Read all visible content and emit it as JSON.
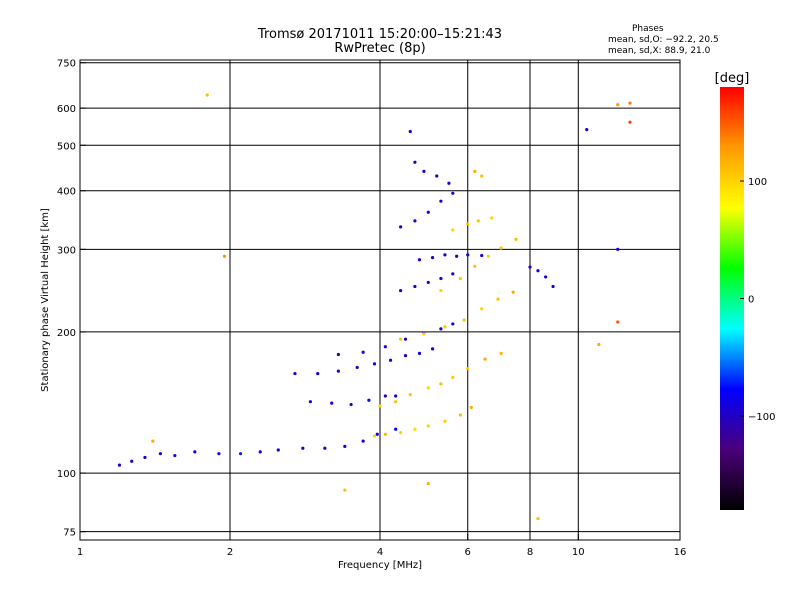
{
  "chart_data": {
    "type": "scatter",
    "title": "Tromsø 20171011 15:20:00–15:21:43",
    "subtitle": "RwPretec (8p)",
    "xlabel": "Frequency [MHz]",
    "ylabel": "Stationary phase Virtual Height [km]",
    "x_scale": "log",
    "y_scale": "log",
    "xlim": [
      1,
      16
    ],
    "ylim": [
      72,
      760
    ],
    "x_ticks": [
      1,
      2,
      4,
      6,
      8,
      10,
      16
    ],
    "y_ticks": [
      75,
      100,
      200,
      300,
      400,
      500,
      600,
      750
    ],
    "grid": true,
    "phases_header": "Phases",
    "phases_o": "mean, sd,O: −92.2, 20.5",
    "phases_x": "mean, sd,X:  88.9, 21.0",
    "colorbar": {
      "label": "[deg]",
      "ticks": [
        "100",
        "0",
        "−100"
      ],
      "tick_values": [
        100,
        0,
        -100
      ],
      "range": [
        -180,
        180
      ],
      "palette": [
        "#000000",
        "#4b007a",
        "#0000ff",
        "#00ffff",
        "#00ff00",
        "#ffff00",
        "#ff9900",
        "#ff0000"
      ]
    },
    "series": [
      {
        "points": [
          [
            1.2,
            104,
            -95
          ],
          [
            1.27,
            106,
            -100
          ],
          [
            1.35,
            108,
            -90
          ],
          [
            1.45,
            110,
            -95
          ],
          [
            1.55,
            109,
            -100
          ],
          [
            1.7,
            111,
            -90
          ],
          [
            1.9,
            110,
            -80
          ],
          [
            2.1,
            110,
            -70
          ],
          [
            2.3,
            111,
            -95
          ],
          [
            2.5,
            112,
            -90
          ],
          [
            2.8,
            113,
            -95
          ],
          [
            3.1,
            113,
            -90
          ],
          [
            3.4,
            114,
            -85
          ],
          [
            3.7,
            117,
            -90
          ],
          [
            3.95,
            121,
            -85
          ],
          [
            4.3,
            124,
            -80
          ]
        ]
      },
      {
        "points": [
          [
            3.9,
            120,
            100
          ],
          [
            4.1,
            121,
            110
          ],
          [
            4.4,
            122,
            100
          ],
          [
            4.7,
            124,
            95
          ],
          [
            5.0,
            126,
            100
          ],
          [
            5.4,
            129,
            105
          ],
          [
            5.8,
            133,
            110
          ],
          [
            6.1,
            138,
            120
          ]
        ]
      },
      {
        "points": [
          [
            2.9,
            142,
            -100
          ],
          [
            3.2,
            141,
            -95
          ],
          [
            3.5,
            140,
            -100
          ],
          [
            3.8,
            143,
            -90
          ],
          [
            4.1,
            146,
            -95
          ],
          [
            4.3,
            146,
            -100
          ]
        ]
      },
      {
        "points": [
          [
            4.0,
            139,
            100
          ],
          [
            4.3,
            142,
            110
          ],
          [
            4.6,
            147,
            105
          ],
          [
            5.0,
            152,
            100
          ],
          [
            5.3,
            155,
            110
          ],
          [
            5.6,
            160,
            105
          ],
          [
            6.0,
            167,
            110
          ],
          [
            6.5,
            175,
            120
          ],
          [
            7.0,
            180,
            115
          ]
        ]
      },
      {
        "points": [
          [
            2.7,
            163,
            -95
          ],
          [
            3.0,
            163,
            -90
          ],
          [
            3.3,
            165,
            -95
          ],
          [
            3.6,
            168,
            -100
          ],
          [
            3.9,
            171,
            -95
          ],
          [
            4.2,
            174,
            -90
          ],
          [
            4.5,
            178,
            -95
          ],
          [
            4.8,
            180,
            -85
          ],
          [
            5.1,
            184,
            -90
          ]
        ]
      },
      {
        "points": [
          [
            3.3,
            179,
            -100
          ],
          [
            3.7,
            181,
            -95
          ],
          [
            4.1,
            186,
            -90
          ],
          [
            4.5,
            193,
            -95
          ],
          [
            4.9,
            199,
            -90
          ],
          [
            5.3,
            203,
            -95
          ],
          [
            5.6,
            208,
            -85
          ]
        ]
      },
      {
        "points": [
          [
            4.4,
            193,
            110
          ],
          [
            4.9,
            198,
            100
          ],
          [
            5.4,
            205,
            105
          ],
          [
            5.9,
            212,
            110
          ],
          [
            6.4,
            224,
            100
          ],
          [
            6.9,
            235,
            110
          ],
          [
            7.4,
            243,
            120
          ]
        ]
      },
      {
        "points": [
          [
            4.4,
            245,
            -90
          ],
          [
            4.7,
            250,
            -95
          ],
          [
            5.0,
            255,
            -100
          ],
          [
            5.3,
            260,
            -90
          ],
          [
            5.6,
            266,
            -95
          ]
        ]
      },
      {
        "points": [
          [
            5.3,
            245,
            100
          ],
          [
            5.8,
            260,
            105
          ],
          [
            6.2,
            276,
            110
          ],
          [
            6.6,
            290,
            100
          ],
          [
            7.0,
            302,
            105
          ],
          [
            7.5,
            315,
            110
          ]
        ]
      },
      {
        "points": [
          [
            4.8,
            285,
            -95
          ],
          [
            5.1,
            288,
            -100
          ],
          [
            5.4,
            292,
            -90
          ],
          [
            5.7,
            290,
            -95
          ],
          [
            6.0,
            292,
            -100
          ],
          [
            6.4,
            291,
            -90
          ]
        ]
      },
      {
        "points": [
          [
            4.4,
            335,
            -100
          ],
          [
            4.7,
            345,
            -95
          ],
          [
            5.0,
            360,
            -90
          ],
          [
            5.3,
            380,
            -95
          ],
          [
            5.6,
            395,
            -100
          ]
        ]
      },
      {
        "points": [
          [
            5.6,
            330,
            100
          ],
          [
            6.0,
            340,
            110
          ],
          [
            6.3,
            345,
            105
          ],
          [
            6.7,
            350,
            100
          ]
        ]
      },
      {
        "points": [
          [
            8.0,
            275,
            -95
          ],
          [
            8.3,
            270,
            -100
          ],
          [
            8.6,
            262,
            -90
          ],
          [
            8.9,
            250,
            -95
          ]
        ]
      },
      {
        "points": [
          [
            4.7,
            460,
            -95
          ],
          [
            4.9,
            440,
            -90
          ],
          [
            5.2,
            430,
            -100
          ],
          [
            5.5,
            415,
            -95
          ],
          [
            6.2,
            440,
            120
          ],
          [
            6.4,
            430,
            110
          ]
        ]
      },
      {
        "points": [
          [
            1.8,
            640,
            110
          ],
          [
            1.95,
            290,
            130
          ],
          [
            1.4,
            117,
            120
          ],
          [
            3.4,
            92,
            110
          ],
          [
            5.0,
            95,
            120
          ],
          [
            8.3,
            80,
            110
          ],
          [
            10.4,
            540,
            -95
          ],
          [
            12.0,
            610,
            130
          ],
          [
            12.7,
            615,
            140
          ],
          [
            12.0,
            210,
            150
          ],
          [
            11.0,
            188,
            120
          ],
          [
            12.0,
            300,
            -90
          ],
          [
            4.6,
            535,
            -95
          ],
          [
            12.7,
            560,
            160
          ]
        ]
      }
    ]
  }
}
